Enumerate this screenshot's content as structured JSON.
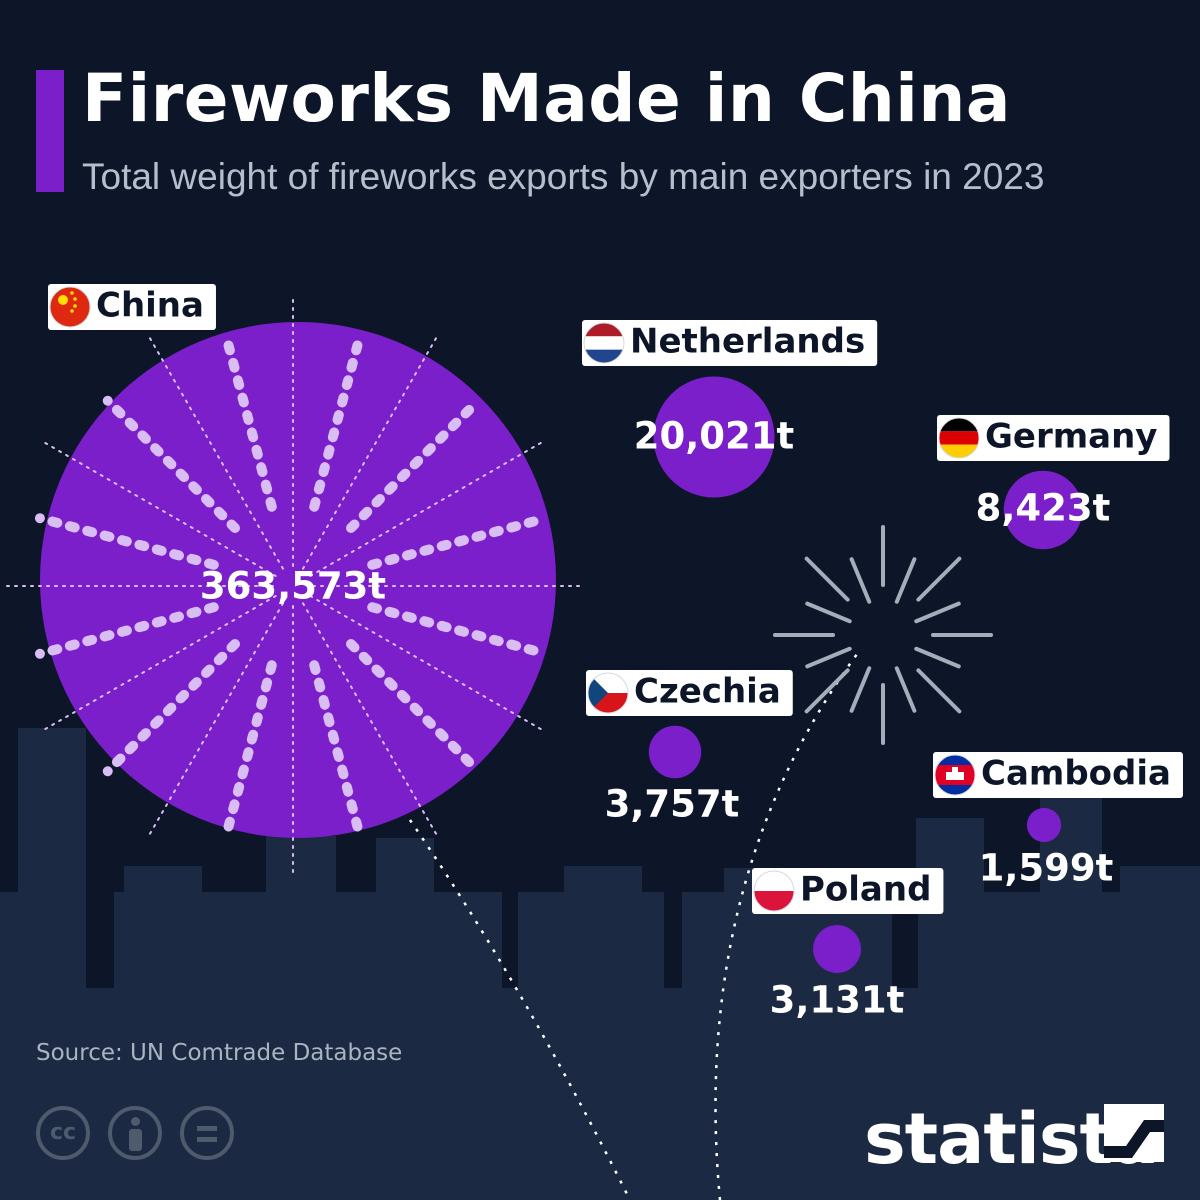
{
  "header": {
    "title": "Fireworks Made in China",
    "subtitle": "Total weight of fireworks exports by main exporters in 2023"
  },
  "colors": {
    "background": "#0d1628",
    "skyline": "#1b2942",
    "accent": "#7a1fca",
    "label_bg": "#ffffff",
    "label_text": "#0d1628",
    "value_text": "#ffffff",
    "spark": "#d9bdf5",
    "firework_grey": "#a3aeba"
  },
  "chart_data": {
    "type": "bubble",
    "title": "Fireworks Made in China",
    "subtitle": "Total weight of fireworks exports by main exporters in 2023",
    "unit": "t",
    "series": [
      {
        "country": "China",
        "value": 363573,
        "value_label": "363,573t",
        "flag": "china-flag-icon"
      },
      {
        "country": "Netherlands",
        "value": 20021,
        "value_label": "20,021t",
        "flag": "netherlands-flag-icon"
      },
      {
        "country": "Germany",
        "value": 8423,
        "value_label": "8,423t",
        "flag": "germany-flag-icon"
      },
      {
        "country": "Czechia",
        "value": 3757,
        "value_label": "3,757t",
        "flag": "czechia-flag-icon"
      },
      {
        "country": "Cambodia",
        "value": 1599,
        "value_label": "1,599t",
        "flag": "cambodia-flag-icon"
      },
      {
        "country": "Poland",
        "value": 3131,
        "value_label": "3,131t",
        "flag": "poland-flag-icon"
      }
    ]
  },
  "footer": {
    "source": "Source: UN Comtrade Database",
    "license_icons": [
      "creative-commons-icon",
      "attribution-icon",
      "no-derivatives-icon"
    ],
    "brand": "statista"
  }
}
